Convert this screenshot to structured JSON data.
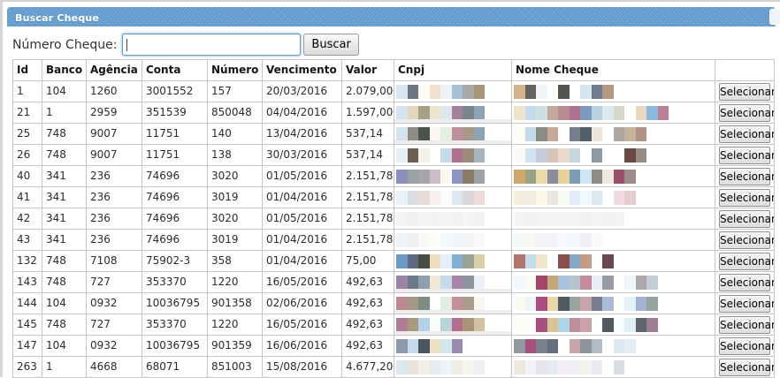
{
  "window": {
    "title": "Buscar Cheque"
  },
  "search": {
    "label": "Número Cheque:",
    "value": "",
    "button_label": "Buscar"
  },
  "colors": {
    "titlebar_blue": "#5f9ccd",
    "titlebar_stripe": "#78abd8",
    "focus_blue": "#5b9bd0",
    "table_border": "#c6c6c6"
  },
  "table": {
    "headers": [
      "Id",
      "Banco",
      "Agência",
      "Conta",
      "Número",
      "Vencimento",
      "Valor",
      "Cnpj",
      "Nome Cheque",
      ""
    ],
    "action_label": "Selecionar",
    "rows": [
      {
        "id": "1",
        "banco": "104",
        "agencia": "1260",
        "conta": "3001552",
        "numero": "157",
        "vencimento": "20/03/2016",
        "valor": "2.079,00",
        "spill": false,
        "cnpj_blocks": [
          "#d9e6f0",
          "#6d7684",
          "#fdfdf4",
          "#f0e0cd",
          "#eaf2f6",
          "#a8c0d8",
          "#a8aaa8",
          "#a89577"
        ],
        "nome_blocks": [
          "#d3b28c",
          "#66625c",
          "#eef5f2",
          "",
          "#55544e",
          "",
          "#d7e5f1",
          "#6f7d92",
          "#b39a80"
        ]
      },
      {
        "id": "21",
        "banco": "1",
        "agencia": "2959",
        "conta": "351539",
        "numero": "850048",
        "vencimento": "04/04/2016",
        "valor": "1.597,00",
        "spill": true,
        "cnpj_blocks": [
          "#d3e3ef",
          "#e5d6bb",
          "#a3a287",
          "#ede4cf",
          "#dce8e9",
          "#a3809c",
          "#78858b",
          "#8ba3b5"
        ],
        "nome_blocks": [
          "#ece4c4",
          "#c4dcea",
          "#cfe0e4",
          "#c4a89f",
          "#b98d92",
          "#b07192",
          "#7b9cc0",
          "#b8d2de",
          "#dde8ef",
          "#d6d8c8",
          "",
          "#e8d8bd",
          "#8bb8dc",
          "#bb8294"
        ]
      },
      {
        "id": "25",
        "banco": "748",
        "agencia": "9007",
        "conta": "11751",
        "numero": "140",
        "vencimento": "13/04/2016",
        "valor": "537,14",
        "spill": true,
        "cnpj_blocks": [
          "#d3e3ef",
          "#8c8c84",
          "#4a544c",
          "#f8f8f0",
          "#e4efe0",
          "#bb8f9c",
          "#a89887",
          "#8ba3b5"
        ],
        "nome_blocks": [
          "#fcfcf4",
          "#c4dcea",
          "#8c8c84",
          "#caa898",
          "",
          "#76808c",
          "#545f6b",
          "#efe6da",
          "",
          "#b0a8a0",
          "#c4b49c",
          "#b09488"
        ]
      },
      {
        "id": "26",
        "banco": "748",
        "agencia": "9007",
        "conta": "11751",
        "numero": "138",
        "vencimento": "30/03/2016",
        "valor": "537,14",
        "spill": false,
        "cnpj_blocks": [
          "#e4eef6",
          "#6b5f4f",
          "#f3f3eb",
          "",
          "#c4dce8",
          "#b07192",
          "#9a8c78",
          "#a8b4bc"
        ],
        "nome_blocks": [
          "#f8fbf8",
          "#d3e3ef",
          "#c4ccd8",
          "#d9c4b8",
          "#e8dcc8",
          "#c9d8e0",
          "",
          "#8c9aa8",
          "",
          "",
          "#6b4a44",
          "#9a8c84"
        ]
      },
      {
        "id": "40",
        "banco": "341",
        "agencia": "236",
        "conta": "74696",
        "numero": "3020",
        "vencimento": "01/05/2016",
        "valor": "2.151,78",
        "spill": false,
        "cnpj_blocks": [
          "#8a90b8",
          "#9aa2a8",
          "#a8a4ac",
          "#d0bcc4",
          "#fbf8f0",
          "#8c94c4",
          "#8a7a68",
          "#9aa2a8"
        ],
        "nome_blocks": [
          "#cfa868",
          "#9aa284",
          "#ecd9a8",
          "#8c8c9a",
          "#e8cf9c",
          "#7a9cb4",
          "#cfe4f4",
          "#8c8c84",
          "#efe8dc",
          "#9a4f6b",
          "#9a8c8c"
        ]
      },
      {
        "id": "41",
        "banco": "341",
        "agencia": "236",
        "conta": "74696",
        "numero": "3019",
        "vencimento": "01/04/2016",
        "valor": "2.151,78",
        "spill": false,
        "cnpj_blocks": [
          "#e8f0f8",
          "#dcdce4",
          "#e8ddd8",
          "#f8f0ec",
          "#fbfbfb",
          "#dce8f0",
          "#d8d8dc",
          "#ecdcd8"
        ],
        "nome_blocks": [
          "#f3ecd8",
          "#f0ece0",
          "#fbf8e8",
          "#ece4e0",
          "#f8fbf4",
          "#e0ecf8",
          "#f0f8fb",
          "#dce8f4",
          "",
          "#f0dce0",
          "#e8ccd0"
        ]
      },
      {
        "id": "42",
        "banco": "341",
        "agencia": "236",
        "conta": "74696",
        "numero": "3020",
        "vencimento": "01/05/2016",
        "valor": "2.151,78",
        "spill": false,
        "cnpj_blocks": [
          "#f4f4f2",
          "#f0f0f0",
          "#f4f4f4",
          "#f2f2f0",
          "#f4f4f4",
          "#f0f2f4",
          "#f4f4f4",
          "#f2f2f2"
        ],
        "nome_blocks": [
          "#f4f4f4",
          "#f2f2f2",
          "#f4f4f4",
          "#f4f4f2",
          "#f2f4f4",
          "#f4f4f4",
          "#f2f2f4",
          "#f4f4f4",
          "#f2f2f2",
          "#f4f4f4"
        ]
      },
      {
        "id": "43",
        "banco": "341",
        "agencia": "236",
        "conta": "74696",
        "numero": "3019",
        "vencimento": "01/04/2016",
        "valor": "2.151,78",
        "spill": false,
        "cnpj_blocks": [
          "#eef3f8",
          "#f0f0f0",
          "#f8f8f4",
          "#fbfbf8",
          "#f4f8fb",
          "#f0f4f8",
          "#f4f4f4",
          "#f8f8f8"
        ],
        "nome_blocks": [
          "#f4f8f4",
          "#f8f8f0",
          "#f4f4f8",
          "#f0f4f8",
          "#f8f8fb",
          "#f4f8fb",
          "#f0f0f4",
          "#f8fbfb"
        ]
      },
      {
        "id": "132",
        "banco": "748",
        "agencia": "7108",
        "conta": "75902-3",
        "numero": "358",
        "vencimento": "01/04/2016",
        "valor": "75,00",
        "spill": false,
        "cnpj_blocks": [
          "#6b9ac4",
          "#5d6b80",
          "#474f44",
          "#f0dcc0",
          "#e4f0f8",
          "#84b0d8",
          "#9aa294",
          "#dccfa8"
        ],
        "nome_blocks": [
          "#b0756b",
          "#c4dcec",
          "#f0e8cc",
          "",
          "#8c4f4f",
          "#84a8c8",
          "#c49a84",
          "",
          "#6b4a4f"
        ]
      },
      {
        "id": "143",
        "banco": "748",
        "agencia": "727",
        "conta": "353370",
        "numero": "1220",
        "vencimento": "16/05/2016",
        "valor": "492,63",
        "spill": true,
        "cnpj_blocks": [
          "#9a84a8",
          "#6b7a84",
          "#8ca0b0",
          "#f0e8d4",
          "#c4dce8",
          "#a884a8",
          "#8c94a0",
          "#ecf0f8"
        ],
        "nome_blocks": [
          "#f4f8fb",
          "#fbfbf4",
          "#a8446b",
          "#c4a878",
          "#a8c4dc",
          "#b4c4cc",
          "#c48c9a",
          "#e8ecf4",
          "#9a9aa2",
          "",
          "#f0f4f8",
          "#b0a8a8",
          "#c4ccd8"
        ]
      },
      {
        "id": "144",
        "banco": "104",
        "agencia": "0932",
        "conta": "10036795",
        "numero": "901358",
        "vencimento": "02/06/2016",
        "valor": "492,63",
        "spill": true,
        "cnpj_blocks": [
          "#bb8a92",
          "#a39a85",
          "#7e8c82",
          "#fdfdfd",
          "#e2ece2",
          "#c38f9a",
          "#ab9c87",
          "#f8f7ef"
        ],
        "nome_blocks": [
          "#fbfbf3",
          "#ecf6fa",
          "#ad4d7f",
          "#ecd5a8",
          "#4f5a63",
          "#9aa39e",
          "#c9a3ab",
          "#76808c",
          "#aab9d6",
          "#fcfdfd",
          "#e3f1f8",
          "#a3b2d4",
          "#94a39e"
        ]
      },
      {
        "id": "145",
        "banco": "748",
        "agencia": "727",
        "conta": "353370",
        "numero": "1220",
        "vencimento": "16/05/2016",
        "valor": "492,63",
        "spill": true,
        "cnpj_blocks": [
          "#b07d96",
          "#a89a7c",
          "#b3d2e8",
          "#fafdfa",
          "#b6d4da",
          "#b56d8e",
          "#a89577",
          "#cfc3a4"
        ],
        "nome_blocks": [
          "#fcfcf4",
          "#fbfbfb",
          "#a84f80",
          "#d9c494",
          "#aed4ec",
          "#bb8f9c",
          "#c9a3ab",
          "",
          "#53595e",
          "#fafdff",
          "#dff0f8",
          "#5d646c",
          "#9e7f92"
        ]
      },
      {
        "id": "147",
        "banco": "104",
        "agencia": "0932",
        "conta": "10036795",
        "numero": "901359",
        "vencimento": "16/06/2016",
        "valor": "492,63",
        "spill": false,
        "cnpj_blocks": [
          "#8c9aa8",
          "#c4dcea",
          "#4a5560",
          "#ecdfc4",
          "#d3e6ec",
          "#9b8cad"
        ],
        "nome_blocks": [
          "#9199a0",
          "#a8517f",
          "#7a828f",
          "#65707e",
          "",
          "#c9a3ab",
          "#8c949e",
          "#b4bcc4",
          "",
          "#dce8f0",
          "#e4ecf4"
        ]
      },
      {
        "id": "263",
        "banco": "1",
        "agencia": "4668",
        "conta": "68071",
        "numero": "851003",
        "vencimento": "15/08/2016",
        "valor": "4.677,20",
        "spill": false,
        "cnpj_blocks": [
          "#dce8f0",
          "#e8e4da",
          "#f3efe4",
          "#e3eef4",
          "#eef3f6",
          "#f0ece4",
          "#f4f4f0",
          "#eef0f4"
        ],
        "nome_blocks": [
          "#ece8dc",
          "#f0f4f8",
          "#e8e4ec",
          "#e4ecf0",
          "#f0eef4",
          "#ecf0f4",
          "#f4f0ec",
          "#e8ecf0",
          "",
          "#d8dce4"
        ]
      }
    ]
  }
}
